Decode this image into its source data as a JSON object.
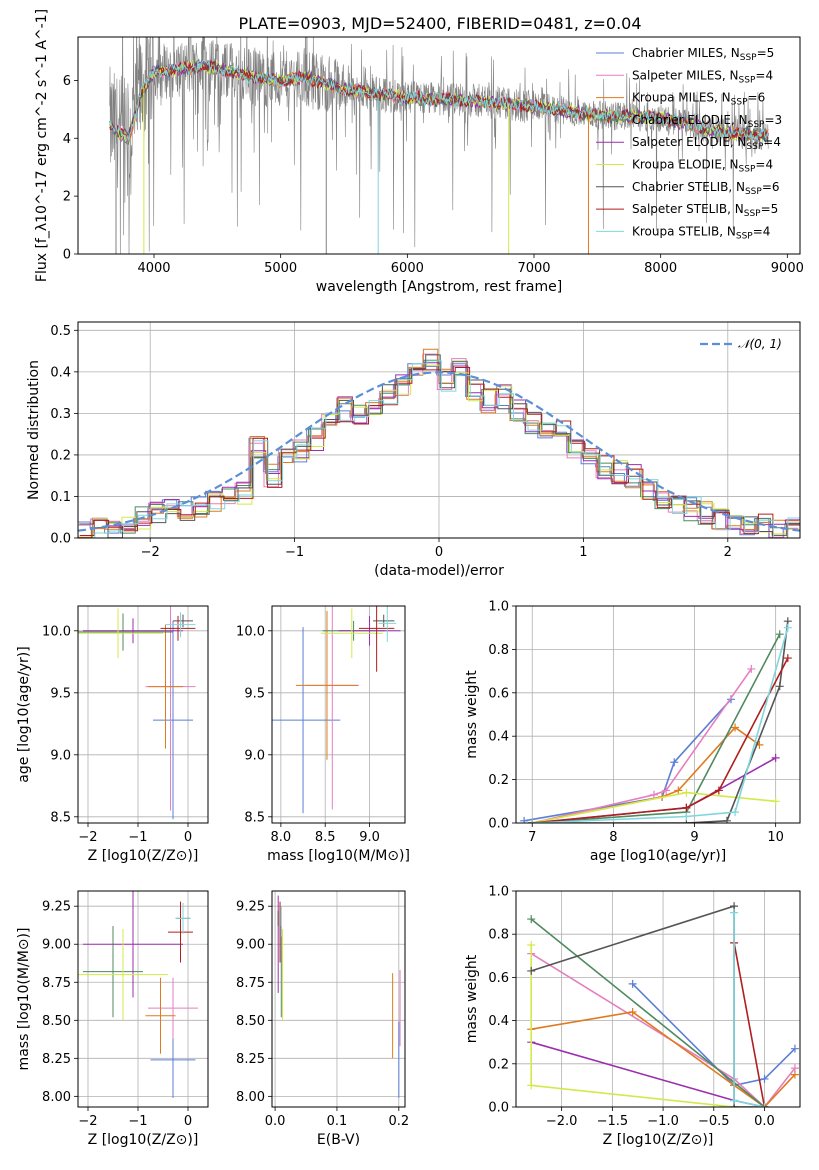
{
  "figure_title": "PLATE=0903, MJD=52400, FIBERID=0481, z=0.04",
  "colors": {
    "Chabrier MILES": "#5b7fd6",
    "Salpeter MILES": "#e57fbf",
    "Kroupa MILES": "#e07a1f",
    "Chabrier ELODIE": "#4e8a5e",
    "Salpeter ELODIE": "#9b2fae",
    "Kroupa ELODIE": "#d4e84a",
    "Chabrier STELIB": "#555555",
    "Salpeter STELIB": "#b01e1e",
    "Kroupa STELIB": "#7fd6dc",
    "data": "#808080",
    "gaussian": "#5b8fd6"
  },
  "chart_data": [
    {
      "id": "spectrum",
      "type": "line",
      "xlabel": "wavelength [Angstrom, rest frame]",
      "ylabel": "Flux [f_λ10^-17 erg cm^-2 s^-1 A^-1]",
      "xlim": [
        3400,
        9100
      ],
      "ylim": [
        0,
        7.5
      ],
      "xticks": [
        4000,
        5000,
        6000,
        7000,
        8000,
        9000
      ],
      "yticks": [
        0,
        2,
        4,
        6
      ],
      "legend_position": "top-right",
      "legend": [
        {
          "label": "Chabrier MILES, N",
          "sub": "SSP",
          "tail": "=5"
        },
        {
          "label": "Salpeter MILES, N",
          "sub": "SSP",
          "tail": "=4"
        },
        {
          "label": "Kroupa MILES, N",
          "sub": "SSP",
          "tail": "=6"
        },
        {
          "label": "Chabrier ELODIE, N",
          "sub": "SSP",
          "tail": "=3"
        },
        {
          "label": "Salpeter ELODIE, N",
          "sub": "SSP",
          "tail": "=4"
        },
        {
          "label": "Kroupa ELODIE, N",
          "sub": "SSP",
          "tail": "=4"
        },
        {
          "label": "Chabrier STELIB, N",
          "sub": "SSP",
          "tail": "=6"
        },
        {
          "label": "Salpeter STELIB, N",
          "sub": "SSP",
          "tail": "=5"
        },
        {
          "label": "Kroupa STELIB, N",
          "sub": "SSP",
          "tail": "=4"
        }
      ],
      "model_continuum": {
        "x": [
          3650,
          3700,
          3800,
          3900,
          4000,
          4200,
          4400,
          4600,
          4800,
          5000,
          5200,
          5500,
          6000,
          6500,
          7000,
          7500,
          8000,
          8500,
          8800
        ],
        "y": [
          4.5,
          4.3,
          4.0,
          5.6,
          6.3,
          6.4,
          6.5,
          6.3,
          6.1,
          6.0,
          6.1,
          5.7,
          5.4,
          5.3,
          5.1,
          4.8,
          4.7,
          4.2,
          4.1
        ]
      }
    },
    {
      "id": "residuals",
      "type": "histogram",
      "xlabel": "(data-model)/error",
      "ylabel": "Normed distribution",
      "xlim": [
        -2.5,
        2.5
      ],
      "ylim": [
        0,
        0.52
      ],
      "xticks": [
        -2,
        -1,
        0,
        1,
        2
      ],
      "yticks": [
        0.0,
        0.1,
        0.2,
        0.3,
        0.4,
        0.5
      ],
      "legend_position": "top-right",
      "gaussian_label": "𝒩(0, 1)",
      "bin_edges_start": -2.5,
      "bin_width": 0.1,
      "base_heights": [
        0.01,
        0.02,
        0.03,
        0.04,
        0.05,
        0.06,
        0.07,
        0.07,
        0.08,
        0.09,
        0.1,
        0.11,
        0.22,
        0.15,
        0.2,
        0.21,
        0.24,
        0.29,
        0.31,
        0.3,
        0.32,
        0.35,
        0.37,
        0.4,
        0.43,
        0.38,
        0.41,
        0.36,
        0.33,
        0.34,
        0.31,
        0.28,
        0.27,
        0.26,
        0.22,
        0.19,
        0.17,
        0.16,
        0.15,
        0.12,
        0.1,
        0.08,
        0.07,
        0.06,
        0.05,
        0.04,
        0.03,
        0.03,
        0.02,
        0.02
      ]
    },
    {
      "id": "age_vs_Z",
      "type": "errorbar",
      "xlabel": "Z [log10(Z/Z⊙)]",
      "ylabel": "age [log10(age/yr)]",
      "xlim": [
        -2.2,
        0.4
      ],
      "ylim": [
        8.45,
        10.2
      ],
      "xticks": [
        -2,
        -1,
        0
      ],
      "yticks": [
        8.5,
        9.0,
        9.5,
        10.0
      ],
      "points": [
        {
          "series": "Chabrier MILES",
          "x": -0.3,
          "y": 9.28,
          "xerr": 0.4,
          "yerr": 0.8
        },
        {
          "series": "Salpeter MILES",
          "x": -0.35,
          "y": 9.55,
          "xerr": 0.5,
          "yerr": 1.0
        },
        {
          "series": "Kroupa MILES",
          "x": -0.45,
          "y": 9.55,
          "xerr": 0.35,
          "yerr": 0.5
        },
        {
          "series": "Chabrier ELODIE",
          "x": -1.3,
          "y": 9.99,
          "xerr": 1.0,
          "yerr": 0.15
        },
        {
          "series": "Salpeter ELODIE",
          "x": -1.1,
          "y": 10.0,
          "xerr": 1.0,
          "yerr": 0.1
        },
        {
          "series": "Kroupa ELODIE",
          "x": -1.4,
          "y": 9.98,
          "xerr": 0.9,
          "yerr": 0.2
        },
        {
          "series": "Chabrier STELIB",
          "x": -0.1,
          "y": 10.08,
          "xerr": 0.2,
          "yerr": 0.05
        },
        {
          "series": "Salpeter STELIB",
          "x": -0.2,
          "y": 10.02,
          "xerr": 0.35,
          "yerr": 0.1
        },
        {
          "series": "Kroupa STELIB",
          "x": -0.15,
          "y": 10.05,
          "xerr": 0.3,
          "yerr": 0.1
        }
      ]
    },
    {
      "id": "age_vs_mass",
      "type": "errorbar",
      "xlabel": "mass [log10(M/M⊙)]",
      "ylabel": "",
      "xlim": [
        7.9,
        9.4
      ],
      "ylim": [
        8.45,
        10.2
      ],
      "xticks": [
        8.0,
        8.5,
        9.0
      ],
      "yticks": [
        8.5,
        9.0,
        9.5,
        10.0
      ],
      "points": [
        {
          "series": "Chabrier MILES",
          "x": 8.25,
          "y": 9.28,
          "xerr": 0.42,
          "yerr": 0.75
        },
        {
          "series": "Salpeter MILES",
          "x": 8.58,
          "y": 9.56,
          "xerr": 0.3,
          "yerr": 1.0
        },
        {
          "series": "Kroupa MILES",
          "x": 8.52,
          "y": 9.56,
          "xerr": 0.35,
          "yerr": 0.6
        },
        {
          "series": "Chabrier ELODIE",
          "x": 8.82,
          "y": 10.0,
          "xerr": 0.35,
          "yerr": 0.08
        },
        {
          "series": "Salpeter ELODIE",
          "x": 9.0,
          "y": 10.0,
          "xerr": 0.35,
          "yerr": 0.12
        },
        {
          "series": "Kroupa ELODIE",
          "x": 8.8,
          "y": 9.98,
          "xerr": 0.35,
          "yerr": 0.2
        },
        {
          "series": "Chabrier STELIB",
          "x": 9.16,
          "y": 10.08,
          "xerr": 0.12,
          "yerr": 0.05
        },
        {
          "series": "Salpeter STELIB",
          "x": 9.08,
          "y": 10.02,
          "xerr": 0.2,
          "yerr": 0.35
        },
        {
          "series": "Kroupa STELIB",
          "x": 9.2,
          "y": 10.06,
          "xerr": 0.1,
          "yerr": 0.15
        }
      ]
    },
    {
      "id": "mass_weight_vs_age",
      "type": "line",
      "xlabel": "age [log10(age/yr)]",
      "ylabel": "mass weight",
      "xlim": [
        6.8,
        10.3
      ],
      "ylim": [
        0,
        1.0
      ],
      "xticks": [
        7,
        8,
        9,
        10
      ],
      "yticks": [
        0.0,
        0.2,
        0.4,
        0.6,
        0.8,
        1.0
      ],
      "series": [
        {
          "name": "Chabrier MILES",
          "x": [
            6.9,
            8.6,
            8.75,
            9.45
          ],
          "y": [
            0.01,
            0.12,
            0.28,
            0.57
          ]
        },
        {
          "name": "Salpeter MILES",
          "x": [
            7.0,
            8.5,
            8.65,
            9.7
          ],
          "y": [
            0.0,
            0.13,
            0.15,
            0.71
          ]
        },
        {
          "name": "Kroupa MILES",
          "x": [
            7.0,
            8.6,
            8.8,
            9.5,
            9.8
          ],
          "y": [
            0.0,
            0.12,
            0.15,
            0.44,
            0.36
          ]
        },
        {
          "name": "Chabrier ELODIE",
          "x": [
            7.0,
            8.9,
            10.05
          ],
          "y": [
            0.0,
            0.05,
            0.87
          ]
        },
        {
          "name": "Salpeter ELODIE",
          "x": [
            7.0,
            8.9,
            10.0
          ],
          "y": [
            0.0,
            0.07,
            0.3
          ]
        },
        {
          "name": "Kroupa ELODIE",
          "x": [
            7.0,
            8.9,
            10.0
          ],
          "y": [
            0.0,
            0.14,
            0.1
          ]
        },
        {
          "name": "Chabrier STELIB",
          "x": [
            7.0,
            8.9,
            9.4,
            10.05,
            10.15
          ],
          "y": [
            0.0,
            0.0,
            0.01,
            0.63,
            0.93
          ]
        },
        {
          "name": "Salpeter STELIB",
          "x": [
            7.0,
            8.9,
            9.3,
            10.15
          ],
          "y": [
            0.0,
            0.07,
            0.15,
            0.76
          ]
        },
        {
          "name": "Kroupa STELIB",
          "x": [
            7.0,
            8.9,
            9.5,
            10.15
          ],
          "y": [
            0.0,
            0.03,
            0.05,
            0.9
          ]
        }
      ]
    },
    {
      "id": "mass_vs_Z",
      "type": "errorbar",
      "xlabel": "Z [log10(Z/Z⊙)]",
      "ylabel": "mass [log10(M/M⊙)]",
      "xlim": [
        -2.2,
        0.4
      ],
      "ylim": [
        7.93,
        9.35
      ],
      "xticks": [
        -2,
        -1,
        0
      ],
      "yticks": [
        8.0,
        8.25,
        8.5,
        8.75,
        9.0,
        9.25
      ],
      "points": [
        {
          "series": "Chabrier MILES",
          "x": -0.3,
          "y": 8.24,
          "xerr": 0.45,
          "yerr": 0.25
        },
        {
          "series": "Salpeter MILES",
          "x": -0.3,
          "y": 8.58,
          "xerr": 0.5,
          "yerr": 0.2
        },
        {
          "series": "Kroupa MILES",
          "x": -0.55,
          "y": 8.53,
          "xerr": 0.3,
          "yerr": 0.25
        },
        {
          "series": "Chabrier ELODIE",
          "x": -1.5,
          "y": 8.82,
          "xerr": 0.6,
          "yerr": 0.3
        },
        {
          "series": "Salpeter ELODIE",
          "x": -1.1,
          "y": 9.0,
          "xerr": 1.0,
          "yerr": 0.35
        },
        {
          "series": "Kroupa ELODIE",
          "x": -1.3,
          "y": 8.8,
          "xerr": 0.9,
          "yerr": 0.3
        },
        {
          "series": "Chabrier STELIB",
          "x": -0.1,
          "y": 9.17,
          "xerr": 0.15,
          "yerr": 0.1
        },
        {
          "series": "Salpeter STELIB",
          "x": -0.15,
          "y": 9.08,
          "xerr": 0.25,
          "yerr": 0.2
        },
        {
          "series": "Kroupa STELIB",
          "x": -0.1,
          "y": 9.17,
          "xerr": 0.15,
          "yerr": 0.1
        }
      ]
    },
    {
      "id": "mass_vs_ebv",
      "type": "errorbar",
      "xlabel": "E(B-V)",
      "ylabel": "",
      "xlim": [
        -0.005,
        0.21
      ],
      "ylim": [
        7.93,
        9.35
      ],
      "xticks": [
        0.0,
        0.1,
        0.2
      ],
      "yticks": [
        8.0,
        8.25,
        8.5,
        8.75,
        9.0,
        9.25
      ],
      "points": [
        {
          "series": "Chabrier MILES",
          "x": 0.2,
          "y": 8.24,
          "xerr": 0.0,
          "yerr": 0.25
        },
        {
          "series": "Salpeter MILES",
          "x": 0.202,
          "y": 8.58,
          "xerr": 0.0,
          "yerr": 0.25
        },
        {
          "series": "Kroupa MILES",
          "x": 0.19,
          "y": 8.53,
          "xerr": 0.0,
          "yerr": 0.28
        },
        {
          "series": "Chabrier ELODIE",
          "x": 0.01,
          "y": 8.82,
          "xerr": 0.0,
          "yerr": 0.3
        },
        {
          "series": "Salpeter ELODIE",
          "x": 0.005,
          "y": 9.0,
          "xerr": 0.0,
          "yerr": 0.32
        },
        {
          "series": "Kroupa ELODIE",
          "x": 0.012,
          "y": 8.8,
          "xerr": 0.0,
          "yerr": 0.3
        },
        {
          "series": "Chabrier STELIB",
          "x": 0.005,
          "y": 9.17,
          "xerr": 0.0,
          "yerr": 0.05
        },
        {
          "series": "Salpeter STELIB",
          "x": 0.008,
          "y": 9.08,
          "xerr": 0.0,
          "yerr": 0.2
        },
        {
          "series": "Kroupa STELIB",
          "x": 0.01,
          "y": 9.15,
          "xerr": 0.0,
          "yerr": 0.1
        }
      ]
    },
    {
      "id": "mass_weight_vs_Z",
      "type": "line",
      "xlabel": "Z [log10(Z/Z⊙)]",
      "ylabel": "mass weight",
      "xlim": [
        -2.45,
        0.35
      ],
      "ylim": [
        0,
        1.0
      ],
      "xticks": [
        -2.0,
        -1.5,
        -1.0,
        -0.5,
        0.0
      ],
      "yticks": [
        0.0,
        0.2,
        0.4,
        0.6,
        0.8,
        1.0
      ],
      "series": [
        {
          "name": "Chabrier MILES",
          "x": [
            -1.3,
            -0.3,
            0.0,
            0.3
          ],
          "y": [
            0.57,
            0.1,
            0.13,
            0.27
          ]
        },
        {
          "name": "Salpeter MILES",
          "x": [
            -2.3,
            -0.3,
            0.0,
            0.3
          ],
          "y": [
            0.71,
            0.13,
            0.0,
            0.18
          ]
        },
        {
          "name": "Kroupa MILES",
          "x": [
            -2.3,
            -1.3,
            -0.3,
            0.0,
            0.3
          ],
          "y": [
            0.36,
            0.44,
            0.1,
            0.0,
            0.15
          ]
        },
        {
          "name": "Chabrier ELODIE",
          "x": [
            -2.3,
            0.0
          ],
          "y": [
            0.87,
            0.0
          ]
        },
        {
          "name": "Salpeter ELODIE",
          "x": [
            -2.3,
            -0.3,
            0.0
          ],
          "y": [
            0.3,
            0.03,
            0.0
          ]
        },
        {
          "name": "Kroupa ELODIE",
          "x": [
            -2.3,
            -2.3,
            -0.3
          ],
          "y": [
            0.75,
            0.1,
            0.0
          ]
        },
        {
          "name": "Chabrier STELIB",
          "x": [
            -2.3,
            -0.3,
            -0.3,
            0.0
          ],
          "y": [
            0.63,
            0.93,
            0.0,
            0.0
          ]
        },
        {
          "name": "Salpeter STELIB",
          "x": [
            -0.3,
            0.0
          ],
          "y": [
            0.76,
            0.0
          ]
        },
        {
          "name": "Kroupa STELIB",
          "x": [
            -0.3,
            -0.3,
            0.0
          ],
          "y": [
            0.9,
            0.03,
            0.0
          ]
        }
      ]
    }
  ]
}
